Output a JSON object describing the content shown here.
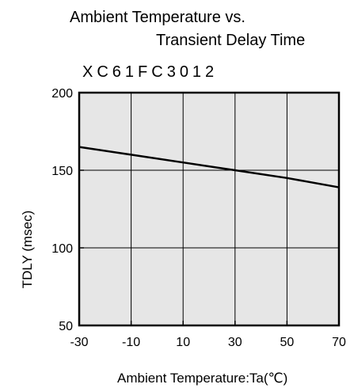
{
  "chart_data": {
    "type": "line",
    "title_line1": "Ambient Temperature vs.",
    "title_line2": "Transient Delay Time",
    "model": "XC61FC3012",
    "xlabel": "Ambient Temperature:Ta(℃)",
    "ylabel": "TDLY (msec)",
    "xlim": [
      -30,
      70
    ],
    "ylim": [
      50,
      200
    ],
    "xticks": [
      -30,
      -10,
      10,
      30,
      50,
      70
    ],
    "yticks": [
      50,
      100,
      150,
      200
    ],
    "grid": true,
    "background_color": "#e6e6e6",
    "line_color": "#000000",
    "series": [
      {
        "x": [
          -30,
          -10,
          10,
          30,
          50,
          70
        ],
        "y": [
          165,
          160,
          155,
          150,
          145,
          139
        ]
      }
    ]
  }
}
